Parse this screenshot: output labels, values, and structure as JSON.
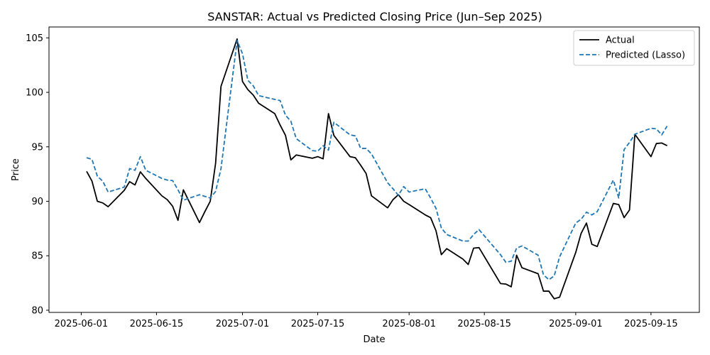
{
  "chart_data": {
    "type": "line",
    "title": "SANSTAR: Actual vs Predicted Closing Price (Jun–Sep 2025)",
    "xlabel": "Date",
    "ylabel": "Price",
    "xlim": [
      "2025-05-26",
      "2025-09-24"
    ],
    "ylim": [
      79.8,
      106.0
    ],
    "x_ticks": [
      "2025-06-01",
      "2025-06-15",
      "2025-07-01",
      "2025-07-15",
      "2025-08-01",
      "2025-08-15",
      "2025-09-01",
      "2025-09-15"
    ],
    "y_ticks": [
      80,
      85,
      90,
      95,
      100,
      105
    ],
    "legend_position": "top-right",
    "grid": false,
    "series": [
      {
        "name": "Actual",
        "color": "#000000",
        "style": "solid",
        "x": [
          "2025-06-02",
          "2025-06-03",
          "2025-06-04",
          "2025-06-05",
          "2025-06-06",
          "2025-06-09",
          "2025-06-10",
          "2025-06-11",
          "2025-06-12",
          "2025-06-13",
          "2025-06-16",
          "2025-06-17",
          "2025-06-18",
          "2025-06-19",
          "2025-06-20",
          "2025-06-23",
          "2025-06-24",
          "2025-06-25",
          "2025-06-26",
          "2025-06-27",
          "2025-06-30",
          "2025-07-01",
          "2025-07-02",
          "2025-07-03",
          "2025-07-04",
          "2025-07-07",
          "2025-07-08",
          "2025-07-09",
          "2025-07-10",
          "2025-07-11",
          "2025-07-14",
          "2025-07-15",
          "2025-07-16",
          "2025-07-17",
          "2025-07-18",
          "2025-07-21",
          "2025-07-22",
          "2025-07-23",
          "2025-07-24",
          "2025-07-25",
          "2025-07-28",
          "2025-07-29",
          "2025-07-30",
          "2025-07-31",
          "2025-08-01",
          "2025-08-04",
          "2025-08-05",
          "2025-08-06",
          "2025-08-07",
          "2025-08-08",
          "2025-08-11",
          "2025-08-12",
          "2025-08-13",
          "2025-08-14",
          "2025-08-18",
          "2025-08-19",
          "2025-08-20",
          "2025-08-21",
          "2025-08-22",
          "2025-08-25",
          "2025-08-26",
          "2025-08-27",
          "2025-08-28",
          "2025-08-29",
          "2025-09-01",
          "2025-09-02",
          "2025-09-03",
          "2025-09-04",
          "2025-09-05",
          "2025-09-08",
          "2025-09-09",
          "2025-09-10",
          "2025-09-11",
          "2025-09-12",
          "2025-09-15",
          "2025-09-16",
          "2025-09-17",
          "2025-09-18"
        ],
        "values": [
          92.75,
          91.85,
          90.0,
          89.85,
          89.5,
          91.0,
          91.8,
          91.5,
          92.7,
          92.1,
          90.5,
          90.15,
          89.55,
          88.25,
          91.05,
          88.05,
          89.05,
          90.0,
          93.5,
          100.55,
          104.9,
          101.0,
          100.25,
          99.75,
          99.0,
          98.05,
          97.0,
          96.05,
          93.8,
          94.25,
          93.95,
          94.1,
          93.9,
          98.05,
          96.05,
          94.1,
          94.0,
          93.3,
          92.55,
          90.5,
          89.4,
          90.15,
          90.6,
          90.0,
          89.7,
          88.75,
          88.5,
          87.3,
          85.1,
          85.65,
          84.7,
          84.2,
          85.7,
          85.75,
          82.45,
          82.4,
          82.15,
          85.05,
          83.9,
          83.35,
          81.75,
          81.75,
          81.05,
          81.2,
          85.3,
          87.05,
          88.0,
          86.05,
          85.85,
          89.8,
          89.7,
          88.5,
          89.2,
          96.15,
          94.1,
          95.3,
          95.35,
          95.1
        ]
      },
      {
        "name": "Predicted (Lasso)",
        "color": "#1f77b4",
        "style": "dashed",
        "x": [
          "2025-06-02",
          "2025-06-03",
          "2025-06-04",
          "2025-06-05",
          "2025-06-06",
          "2025-06-09",
          "2025-06-10",
          "2025-06-11",
          "2025-06-12",
          "2025-06-13",
          "2025-06-16",
          "2025-06-17",
          "2025-06-18",
          "2025-06-19",
          "2025-06-20",
          "2025-06-23",
          "2025-06-24",
          "2025-06-25",
          "2025-06-26",
          "2025-06-27",
          "2025-06-30",
          "2025-07-01",
          "2025-07-02",
          "2025-07-03",
          "2025-07-04",
          "2025-07-07",
          "2025-07-08",
          "2025-07-09",
          "2025-07-10",
          "2025-07-11",
          "2025-07-14",
          "2025-07-15",
          "2025-07-16",
          "2025-07-17",
          "2025-07-18",
          "2025-07-21",
          "2025-07-22",
          "2025-07-23",
          "2025-07-24",
          "2025-07-25",
          "2025-07-28",
          "2025-07-29",
          "2025-07-30",
          "2025-07-31",
          "2025-08-01",
          "2025-08-04",
          "2025-08-05",
          "2025-08-06",
          "2025-08-07",
          "2025-08-08",
          "2025-08-11",
          "2025-08-12",
          "2025-08-13",
          "2025-08-14",
          "2025-08-18",
          "2025-08-19",
          "2025-08-20",
          "2025-08-21",
          "2025-08-22",
          "2025-08-25",
          "2025-08-26",
          "2025-08-27",
          "2025-08-28",
          "2025-08-29",
          "2025-09-01",
          "2025-09-02",
          "2025-09-03",
          "2025-09-04",
          "2025-09-05",
          "2025-09-08",
          "2025-09-09",
          "2025-09-10",
          "2025-09-11",
          "2025-09-12",
          "2025-09-15",
          "2025-09-16",
          "2025-09-17",
          "2025-09-18"
        ],
        "values": [
          94.0,
          93.85,
          92.3,
          91.85,
          90.85,
          91.3,
          93.0,
          92.85,
          94.1,
          92.85,
          92.1,
          91.95,
          91.9,
          91.05,
          90.1,
          90.6,
          90.45,
          90.3,
          90.9,
          93.0,
          104.75,
          103.55,
          101.1,
          100.6,
          99.7,
          99.35,
          99.25,
          97.9,
          97.35,
          95.75,
          94.65,
          94.6,
          95.1,
          94.7,
          97.25,
          96.1,
          96.0,
          94.85,
          94.85,
          94.35,
          91.7,
          91.15,
          90.55,
          91.35,
          90.85,
          91.15,
          90.3,
          89.35,
          87.55,
          86.95,
          86.35,
          86.35,
          86.95,
          87.4,
          85.1,
          84.4,
          84.5,
          85.7,
          85.9,
          85.05,
          83.25,
          82.8,
          83.15,
          84.9,
          88.0,
          88.35,
          89.0,
          88.75,
          89.05,
          91.95,
          90.3,
          94.75,
          95.4,
          96.15,
          96.7,
          96.65,
          96.1,
          96.9
        ]
      }
    ]
  }
}
